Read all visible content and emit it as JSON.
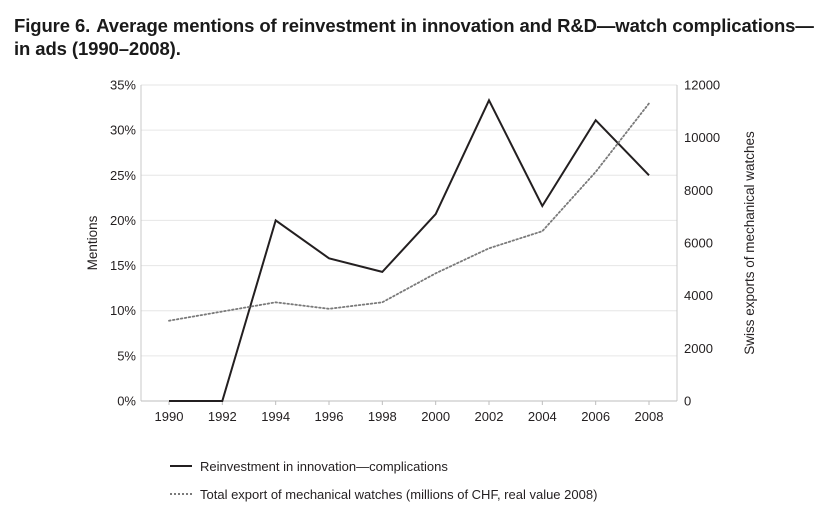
{
  "figure": {
    "number": "Figure 6.",
    "title": "Average mentions of reinvestment in innovation and R&D—watch complications—in ads (1990–2008)."
  },
  "chart_data": {
    "type": "line",
    "x": [
      "1990",
      "1992",
      "1994",
      "1996",
      "1998",
      "2000",
      "2002",
      "2004",
      "2006",
      "2008"
    ],
    "xlabel": "",
    "ylabel": "Mentions",
    "ylim": [
      0,
      35
    ],
    "yticks": [
      "0%",
      "5%",
      "10%",
      "15%",
      "20%",
      "25%",
      "30%",
      "35%"
    ],
    "y2label": "Swiss exports of mechanical watches",
    "y2lim": [
      0,
      12000
    ],
    "y2ticks": [
      "0",
      "2000",
      "4000",
      "6000",
      "8000",
      "10000",
      "12000"
    ],
    "grid": true,
    "legend_position": "bottom",
    "series": [
      {
        "name": "Reinvestment in innovation—complications",
        "axis": "left",
        "style": "solid",
        "color": "#231f20",
        "values": [
          0,
          0,
          20,
          15.8,
          14.3,
          20.7,
          33.3,
          21.6,
          31.1,
          25
        ]
      },
      {
        "name": "Total export of mechanical watches (millions of CHF, real value 2008)",
        "axis": "right",
        "style": "dotted",
        "color": "#7a7a7a",
        "values": [
          3050,
          3400,
          3750,
          3500,
          3750,
          4850,
          5800,
          6450,
          8700,
          11300
        ]
      }
    ]
  }
}
